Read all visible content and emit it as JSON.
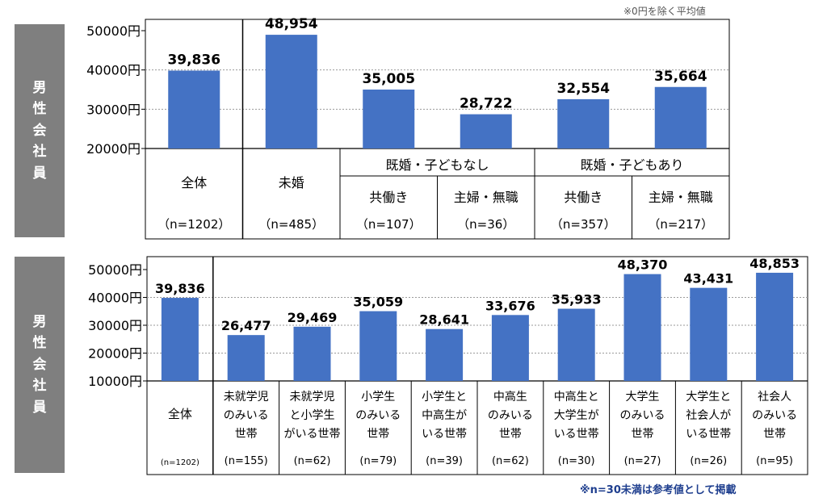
{
  "top_note": "※0円を除く平均値",
  "bottom_note": "※n=30未満は参考値として掲載",
  "side_label": [
    "男",
    "性",
    "会",
    "社",
    "員"
  ],
  "chart_data": [
    {
      "type": "bar",
      "ylim": [
        20000,
        50000
      ],
      "yticks": [
        "50000円",
        "40000円",
        "30000円",
        "20000円"
      ],
      "ytick_values": [
        50000,
        40000,
        30000,
        20000
      ],
      "bar_color": "#4472c4",
      "values": [
        39836,
        48954,
        35005,
        28722,
        32554,
        35664
      ],
      "value_labels": [
        "39,836",
        "48,954",
        "35,005",
        "28,722",
        "32,554",
        "35,664"
      ],
      "group_headers": [
        "既婚・子どもなし",
        "既婚・子どもあり"
      ],
      "categories": [
        {
          "label": "全体",
          "n": "（n=1202）"
        },
        {
          "label": "未婚",
          "n": "（n=485）"
        },
        {
          "label": "共働き",
          "n": "（n=107）"
        },
        {
          "label": "主婦・無職",
          "n": "（n=36）"
        },
        {
          "label": "共働き",
          "n": "（n=357）"
        },
        {
          "label": "主婦・無職",
          "n": "（n=217）"
        }
      ]
    },
    {
      "type": "bar",
      "ylim": [
        10000,
        50000
      ],
      "yticks": [
        "50000円",
        "40000円",
        "30000円",
        "20000円",
        "10000円"
      ],
      "ytick_values": [
        50000,
        40000,
        30000,
        20000,
        10000
      ],
      "bar_color": "#4472c4",
      "values": [
        39836,
        26477,
        29469,
        35059,
        28641,
        33676,
        35933,
        48370,
        43431,
        48853
      ],
      "value_labels": [
        "39,836",
        "26,477",
        "29,469",
        "35,059",
        "28,641",
        "33,676",
        "35,933",
        "48,370",
        "43,431",
        "48,853"
      ],
      "categories": [
        {
          "lines": [
            "全体"
          ],
          "n": "(n=1202)"
        },
        {
          "lines": [
            "未就学児",
            "のみいる",
            "世帯"
          ],
          "n": "(n=155)"
        },
        {
          "lines": [
            "未就学児",
            "と小学生",
            "がいる世帯"
          ],
          "n": "(n=62)"
        },
        {
          "lines": [
            "小学生",
            "のみいる",
            "世帯"
          ],
          "n": "(n=79)"
        },
        {
          "lines": [
            "小学生と",
            "中高生が",
            "いる世帯"
          ],
          "n": "(n=39)"
        },
        {
          "lines": [
            "中高生",
            "のみいる",
            "世帯"
          ],
          "n": "(n=62)"
        },
        {
          "lines": [
            "中高生と",
            "大学生が",
            "いる世帯"
          ],
          "n": "(n=30)"
        },
        {
          "lines": [
            "大学生",
            "のみいる",
            "世帯"
          ],
          "n": "(n=27)"
        },
        {
          "lines": [
            "大学生と",
            "社会人が",
            "いる世帯"
          ],
          "n": "(n=26)"
        },
        {
          "lines": [
            "社会人",
            "のみいる",
            "世帯"
          ],
          "n": "(n=95)"
        }
      ]
    }
  ]
}
